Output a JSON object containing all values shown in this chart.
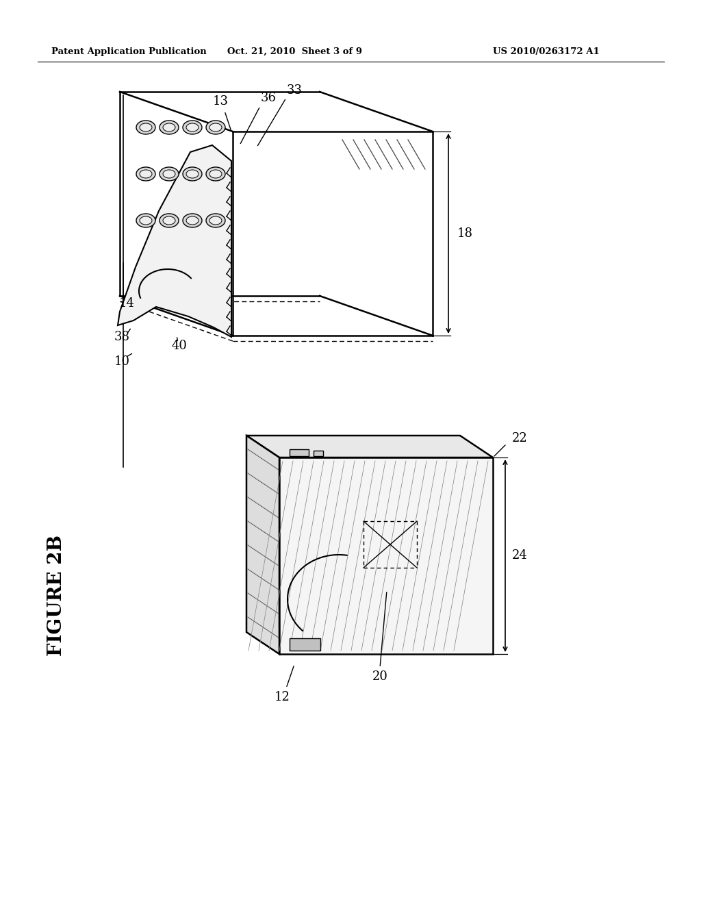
{
  "bg_color": "#ffffff",
  "header_left": "Patent Application Publication",
  "header_center": "Oct. 21, 2010  Sheet 3 of 9",
  "header_right": "US 2010/0263172 A1",
  "figure_label": "FIGURE 2B",
  "fig_width": 10.24,
  "fig_height": 13.2
}
